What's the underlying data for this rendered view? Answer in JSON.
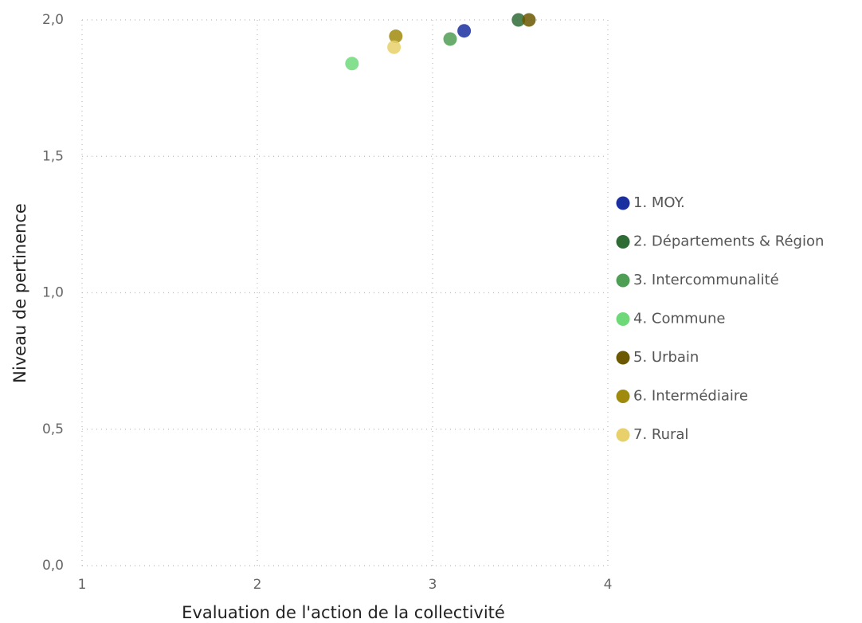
{
  "chart_data": {
    "type": "scatter",
    "x_label": "Evaluation de l'action de la collectivité",
    "y_label": "Niveau de pertinence",
    "xlim": [
      1,
      4
    ],
    "xticks": [
      1,
      2,
      3,
      4
    ],
    "ylim": [
      0,
      2
    ],
    "yticks": [
      {
        "value": 0,
        "label": "0,0"
      },
      {
        "value": 0.5,
        "label": "0,5"
      },
      {
        "value": 1,
        "label": "1,0"
      },
      {
        "value": 1.5,
        "label": "1,5"
      },
      {
        "value": 2,
        "label": "2,0"
      }
    ],
    "grid": true,
    "legend": "right",
    "series": [
      {
        "name": "1. MOY.",
        "color": "#1a2fa0",
        "x": [
          3.18
        ],
        "values": [
          1.96
        ]
      },
      {
        "name": "2. Départements & Région",
        "color": "#2f6b35",
        "x": [
          3.49
        ],
        "values": [
          2.0
        ]
      },
      {
        "name": "3. Intercommunalité",
        "color": "#4f9e55",
        "x": [
          3.1
        ],
        "values": [
          1.93
        ]
      },
      {
        "name": "4. Commune",
        "color": "#6fd97a",
        "x": [
          2.54
        ],
        "values": [
          1.84
        ]
      },
      {
        "name": "5. Urbain",
        "color": "#6b5800",
        "x": [
          3.55
        ],
        "values": [
          2.0
        ]
      },
      {
        "name": "6. Intermédiaire",
        "color": "#a08a0e",
        "x": [
          2.79
        ],
        "values": [
          1.94
        ]
      },
      {
        "name": "7. Rural",
        "color": "#e8d06a",
        "x": [
          2.78
        ],
        "values": [
          1.9
        ]
      }
    ]
  }
}
